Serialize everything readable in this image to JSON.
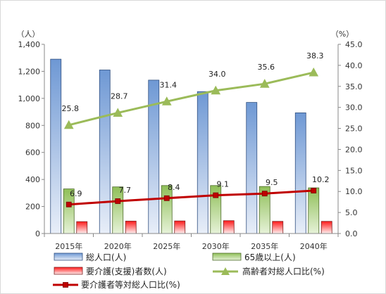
{
  "chart_data": {
    "type": "bar",
    "categories": [
      "2015年",
      "2020年",
      "2025年",
      "2030年",
      "2035年",
      "2040年"
    ],
    "left_axis": {
      "unit_label": "（人）",
      "ylim": [
        0,
        1400
      ],
      "ticks": [
        "0",
        "200",
        "400",
        "600",
        "800",
        "1,000",
        "1,200",
        "1,400"
      ]
    },
    "right_axis": {
      "unit_label": "（%）",
      "ylim": [
        0,
        45
      ],
      "ticks": [
        "0.0",
        "5.0",
        "10.0",
        "15.0",
        "20.0",
        "25.0",
        "30.0",
        "35.0",
        "40.0",
        "45.0"
      ]
    },
    "series": [
      {
        "name": "総人口(人)",
        "kind": "bar",
        "axis": "left",
        "color": "#4f81bd",
        "values": [
          1290,
          1210,
          1135,
          1050,
          970,
          893
        ]
      },
      {
        "name": "65歳以上(人)",
        "kind": "bar",
        "axis": "left",
        "color": "#9bbb59",
        "values": [
          330,
          345,
          355,
          355,
          348,
          338
        ]
      },
      {
        "name": "要介護(支援)者数(人)",
        "kind": "bar",
        "axis": "left",
        "color": "#c0504d",
        "values": [
          88,
          92,
          93,
          95,
          90,
          90
        ]
      },
      {
        "name": "高齢者対総人口比(%)",
        "kind": "line",
        "axis": "right",
        "color": "#9bbb59",
        "marker": "triangle",
        "values": [
          25.8,
          28.7,
          31.4,
          34.0,
          35.6,
          38.3
        ],
        "labels": [
          "25.8",
          "28.7",
          "31.4",
          "34.0",
          "35.6",
          "38.3"
        ]
      },
      {
        "name": "要介護者等対総人口比(%)",
        "kind": "line",
        "axis": "right",
        "color": "#c00000",
        "marker": "square",
        "values": [
          6.9,
          7.7,
          8.4,
          9.1,
          9.5,
          10.2
        ],
        "labels": [
          "6.9",
          "7.7",
          "8.4",
          "9.1",
          "9.5",
          "10.2"
        ]
      }
    ],
    "grid": false,
    "legend_placement": "bottom"
  }
}
